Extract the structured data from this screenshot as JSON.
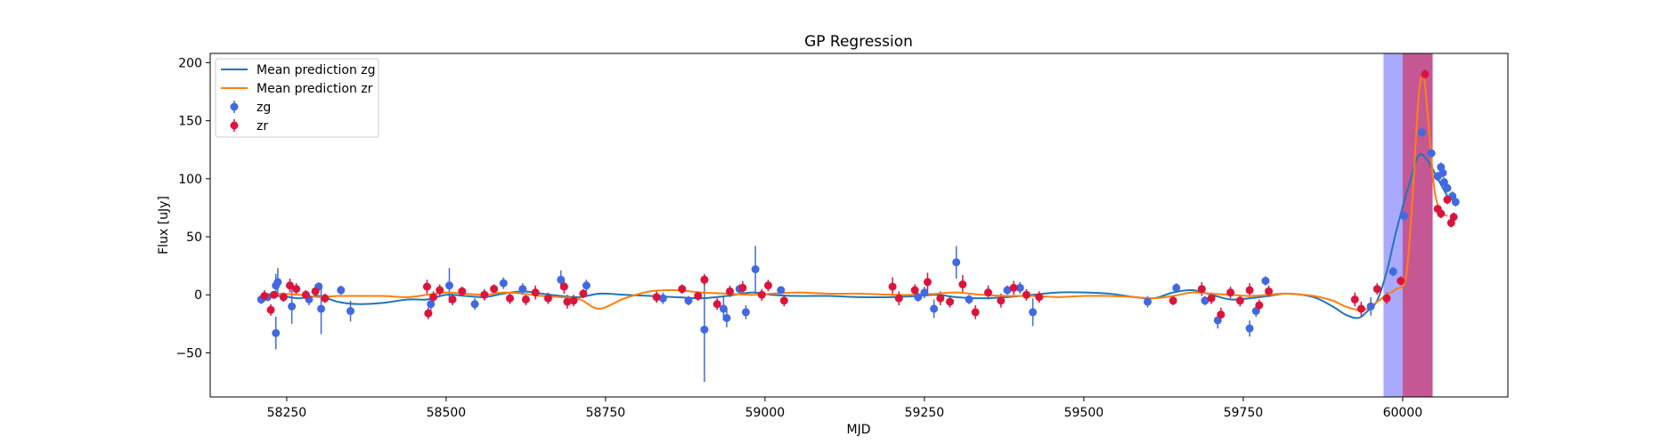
{
  "chart_data": {
    "type": "scatter",
    "title": "GP Regression",
    "xlabel": "MJD",
    "ylabel": "Flux [uJy]",
    "xlim": [
      58130,
      60165
    ],
    "ylim": [
      -88,
      208
    ],
    "x_ticks": [
      58250,
      58500,
      58750,
      59000,
      59250,
      59500,
      59750,
      60000
    ],
    "y_ticks": [
      -50,
      0,
      50,
      100,
      150,
      200
    ],
    "grid": false,
    "legend": {
      "position": "top-left",
      "entries": [
        {
          "label": "Mean prediction zg",
          "kind": "line",
          "color": "#1f77b4"
        },
        {
          "label": "Mean prediction zr",
          "kind": "line",
          "color": "#ff7f0e"
        },
        {
          "label": "zg",
          "kind": "errorbar",
          "color": "#4169e1"
        },
        {
          "label": "zr",
          "kind": "errorbar",
          "color": "#dc143c"
        }
      ]
    },
    "shaded_regions": [
      {
        "x0": 59970,
        "x1": 60047,
        "color": "#7b7bff",
        "opacity": 0.65
      },
      {
        "x0": 60000,
        "x1": 60047,
        "color": "#dc143c",
        "opacity": 0.55
      }
    ],
    "series": [
      {
        "name": "Mean prediction zg",
        "kind": "line",
        "color": "#1f77b4",
        "x": [
          58210,
          58240,
          58270,
          58300,
          58330,
          58360,
          58400,
          58440,
          58470,
          58500,
          58530,
          58560,
          58590,
          58620,
          58650,
          58680,
          58710,
          58740,
          58780,
          58820,
          58860,
          58900,
          58940,
          58980,
          59010,
          59050,
          59100,
          59150,
          59200,
          59240,
          59270,
          59300,
          59340,
          59380,
          59420,
          59460,
          59500,
          59540,
          59580,
          59610,
          59640,
          59670,
          59700,
          59730,
          59760,
          59790,
          59820,
          59860,
          59890,
          59910,
          59930,
          59945,
          59960,
          59975,
          59990,
          60010,
          60025,
          60040,
          60055,
          60070
        ],
        "y": [
          -2,
          -1,
          -3,
          -1,
          -6,
          -8,
          -7,
          -4,
          -4,
          0,
          -1,
          -2,
          1,
          3,
          1,
          -1,
          -2,
          1,
          0,
          -1,
          -2,
          -3,
          -1,
          2,
          0,
          -1,
          -1,
          -2,
          -2,
          -1,
          0,
          -2,
          -3,
          -2,
          0,
          2,
          2,
          1,
          -2,
          -3,
          2,
          4,
          0,
          -4,
          -3,
          -1,
          1,
          -2,
          -10,
          -17,
          -20,
          -14,
          -5,
          20,
          55,
          95,
          120,
          115,
          100,
          85
        ],
        "errorbars": false
      },
      {
        "name": "Mean prediction zr",
        "kind": "line",
        "color": "#ff7f0e",
        "x": [
          58210,
          58240,
          58270,
          58300,
          58330,
          58360,
          58400,
          58440,
          58470,
          58500,
          58530,
          58560,
          58590,
          58620,
          58650,
          58680,
          58710,
          58740,
          58780,
          58820,
          58860,
          58900,
          58940,
          58980,
          59010,
          59050,
          59100,
          59150,
          59200,
          59240,
          59270,
          59300,
          59340,
          59380,
          59420,
          59460,
          59500,
          59540,
          59580,
          59610,
          59640,
          59670,
          59700,
          59730,
          59760,
          59790,
          59820,
          59860,
          59890,
          59910,
          59930,
          59945,
          59960,
          59975,
          59990,
          60005,
          60015,
          60025,
          60033,
          60040,
          60050,
          60060,
          60070
        ],
        "y": [
          0,
          1,
          0,
          -2,
          -1,
          -1,
          -1,
          -2,
          0,
          2,
          1,
          0,
          2,
          1,
          -1,
          -2,
          -4,
          -12,
          -3,
          3,
          4,
          2,
          1,
          0,
          1,
          2,
          1,
          1,
          0,
          0,
          1,
          2,
          0,
          -1,
          -1,
          -2,
          -1,
          -1,
          -2,
          -3,
          -1,
          2,
          1,
          0,
          -1,
          0,
          1,
          -1,
          -5,
          -10,
          -13,
          -12,
          -6,
          0,
          5,
          15,
          80,
          170,
          188,
          150,
          90,
          72,
          68
        ],
        "errorbars": false
      },
      {
        "name": "zg",
        "kind": "errorbar",
        "color": "#4169e1",
        "points": [
          {
            "x": 58210,
            "y": -4,
            "err": 4
          },
          {
            "x": 58220,
            "y": -2,
            "err": 3
          },
          {
            "x": 58233,
            "y": 8,
            "err": 10
          },
          {
            "x": 58236,
            "y": 11,
            "err": 12
          },
          {
            "x": 58233,
            "y": -33,
            "err": 14
          },
          {
            "x": 58258,
            "y": -10,
            "err": 15
          },
          {
            "x": 58285,
            "y": -4,
            "err": 5
          },
          {
            "x": 58300,
            "y": 7,
            "err": 4
          },
          {
            "x": 58304,
            "y": -12,
            "err": 22
          },
          {
            "x": 58335,
            "y": 4,
            "err": 4
          },
          {
            "x": 58350,
            "y": -14,
            "err": 9
          },
          {
            "x": 58476,
            "y": -8,
            "err": 6
          },
          {
            "x": 58505,
            "y": 8,
            "err": 15
          },
          {
            "x": 58545,
            "y": -8,
            "err": 5
          },
          {
            "x": 58590,
            "y": 10,
            "err": 5
          },
          {
            "x": 58620,
            "y": 5,
            "err": 5
          },
          {
            "x": 58680,
            "y": 13,
            "err": 8
          },
          {
            "x": 58720,
            "y": 8,
            "err": 5
          },
          {
            "x": 58840,
            "y": -3,
            "err": 5
          },
          {
            "x": 58880,
            "y": -5,
            "err": 4
          },
          {
            "x": 58905,
            "y": -30,
            "err": 45
          },
          {
            "x": 58935,
            "y": -12,
            "err": 10
          },
          {
            "x": 58940,
            "y": -20,
            "err": 8
          },
          {
            "x": 58970,
            "y": -15,
            "err": 6
          },
          {
            "x": 58985,
            "y": 22,
            "err": 20
          },
          {
            "x": 58960,
            "y": 5,
            "err": 4
          },
          {
            "x": 59025,
            "y": 4,
            "err": 3
          },
          {
            "x": 59240,
            "y": -2,
            "err": 4
          },
          {
            "x": 59250,
            "y": 2,
            "err": 5
          },
          {
            "x": 59265,
            "y": -12,
            "err": 8
          },
          {
            "x": 59300,
            "y": 28,
            "err": 14
          },
          {
            "x": 59320,
            "y": -4,
            "err": 4
          },
          {
            "x": 59380,
            "y": 4,
            "err": 4
          },
          {
            "x": 59400,
            "y": 6,
            "err": 5
          },
          {
            "x": 59420,
            "y": -15,
            "err": 12
          },
          {
            "x": 59600,
            "y": -6,
            "err": 5
          },
          {
            "x": 59645,
            "y": 6,
            "err": 4
          },
          {
            "x": 59690,
            "y": -5,
            "err": 4
          },
          {
            "x": 59710,
            "y": -22,
            "err": 7
          },
          {
            "x": 59760,
            "y": -29,
            "err": 7
          },
          {
            "x": 59785,
            "y": 12,
            "err": 4
          },
          {
            "x": 59770,
            "y": -14,
            "err": 5
          },
          {
            "x": 59950,
            "y": -10,
            "err": 8
          },
          {
            "x": 59985,
            "y": 20,
            "err": 4
          },
          {
            "x": 60002,
            "y": 68,
            "err": 4
          },
          {
            "x": 60030,
            "y": 140,
            "err": 4
          },
          {
            "x": 60045,
            "y": 122,
            "err": 4
          },
          {
            "x": 60060,
            "y": 110,
            "err": 4
          },
          {
            "x": 60063,
            "y": 105,
            "err": 4
          },
          {
            "x": 60065,
            "y": 97,
            "err": 4
          },
          {
            "x": 60070,
            "y": 92,
            "err": 4
          },
          {
            "x": 60078,
            "y": 85,
            "err": 4
          },
          {
            "x": 60083,
            "y": 80,
            "err": 4
          },
          {
            "x": 60055,
            "y": 102,
            "err": 4
          }
        ]
      },
      {
        "name": "zr",
        "kind": "errorbar",
        "color": "#dc143c",
        "points": [
          {
            "x": 58215,
            "y": -1,
            "err": 5
          },
          {
            "x": 58225,
            "y": -13,
            "err": 5
          },
          {
            "x": 58230,
            "y": 0,
            "err": 3
          },
          {
            "x": 58245,
            "y": -2,
            "err": 4
          },
          {
            "x": 58255,
            "y": 8,
            "err": 6
          },
          {
            "x": 58265,
            "y": 5,
            "err": 5
          },
          {
            "x": 58280,
            "y": 0,
            "err": 4
          },
          {
            "x": 58295,
            "y": 3,
            "err": 5
          },
          {
            "x": 58310,
            "y": -3,
            "err": 4
          },
          {
            "x": 58470,
            "y": 7,
            "err": 6
          },
          {
            "x": 58472,
            "y": -16,
            "err": 5
          },
          {
            "x": 58480,
            "y": -2,
            "err": 5
          },
          {
            "x": 58490,
            "y": 4,
            "err": 5
          },
          {
            "x": 58510,
            "y": -4,
            "err": 5
          },
          {
            "x": 58525,
            "y": 3,
            "err": 4
          },
          {
            "x": 58560,
            "y": 0,
            "err": 5
          },
          {
            "x": 58575,
            "y": 5,
            "err": 4
          },
          {
            "x": 58600,
            "y": -3,
            "err": 5
          },
          {
            "x": 58625,
            "y": -4,
            "err": 5
          },
          {
            "x": 58640,
            "y": 2,
            "err": 6
          },
          {
            "x": 58660,
            "y": -3,
            "err": 5
          },
          {
            "x": 58685,
            "y": 7,
            "err": 6
          },
          {
            "x": 58690,
            "y": -6,
            "err": 6
          },
          {
            "x": 58700,
            "y": -5,
            "err": 5
          },
          {
            "x": 58715,
            "y": 1,
            "err": 4
          },
          {
            "x": 58830,
            "y": -2,
            "err": 5
          },
          {
            "x": 58870,
            "y": 5,
            "err": 4
          },
          {
            "x": 58895,
            "y": -1,
            "err": 4
          },
          {
            "x": 58905,
            "y": 13,
            "err": 5
          },
          {
            "x": 58925,
            "y": -8,
            "err": 5
          },
          {
            "x": 58945,
            "y": 3,
            "err": 5
          },
          {
            "x": 58965,
            "y": 6,
            "err": 6
          },
          {
            "x": 58995,
            "y": 0,
            "err": 5
          },
          {
            "x": 59005,
            "y": 8,
            "err": 5
          },
          {
            "x": 59030,
            "y": -5,
            "err": 5
          },
          {
            "x": 59200,
            "y": 7,
            "err": 8
          },
          {
            "x": 59210,
            "y": -3,
            "err": 6
          },
          {
            "x": 59235,
            "y": 4,
            "err": 5
          },
          {
            "x": 59255,
            "y": 11,
            "err": 8
          },
          {
            "x": 59275,
            "y": -3,
            "err": 6
          },
          {
            "x": 59290,
            "y": -6,
            "err": 5
          },
          {
            "x": 59310,
            "y": 9,
            "err": 8
          },
          {
            "x": 59330,
            "y": -15,
            "err": 6
          },
          {
            "x": 59350,
            "y": 2,
            "err": 6
          },
          {
            "x": 59370,
            "y": -5,
            "err": 6
          },
          {
            "x": 59390,
            "y": 6,
            "err": 6
          },
          {
            "x": 59410,
            "y": 0,
            "err": 5
          },
          {
            "x": 59430,
            "y": -2,
            "err": 5
          },
          {
            "x": 59640,
            "y": -5,
            "err": 4
          },
          {
            "x": 59685,
            "y": 5,
            "err": 6
          },
          {
            "x": 59700,
            "y": -3,
            "err": 5
          },
          {
            "x": 59715,
            "y": -17,
            "err": 6
          },
          {
            "x": 59730,
            "y": 2,
            "err": 5
          },
          {
            "x": 59745,
            "y": -5,
            "err": 5
          },
          {
            "x": 59760,
            "y": 4,
            "err": 6
          },
          {
            "x": 59775,
            "y": -9,
            "err": 5
          },
          {
            "x": 59790,
            "y": 3,
            "err": 5
          },
          {
            "x": 59925,
            "y": -4,
            "err": 6
          },
          {
            "x": 59935,
            "y": -12,
            "err": 6
          },
          {
            "x": 59960,
            "y": 5,
            "err": 5
          },
          {
            "x": 59975,
            "y": -3,
            "err": 5
          },
          {
            "x": 59997,
            "y": 12,
            "err": 4
          },
          {
            "x": 60035,
            "y": 190,
            "err": 4
          },
          {
            "x": 60055,
            "y": 74,
            "err": 4
          },
          {
            "x": 60060,
            "y": 70,
            "err": 4
          },
          {
            "x": 60070,
            "y": 82,
            "err": 4
          },
          {
            "x": 60076,
            "y": 62,
            "err": 4
          },
          {
            "x": 60080,
            "y": 67,
            "err": 4
          }
        ]
      }
    ]
  }
}
